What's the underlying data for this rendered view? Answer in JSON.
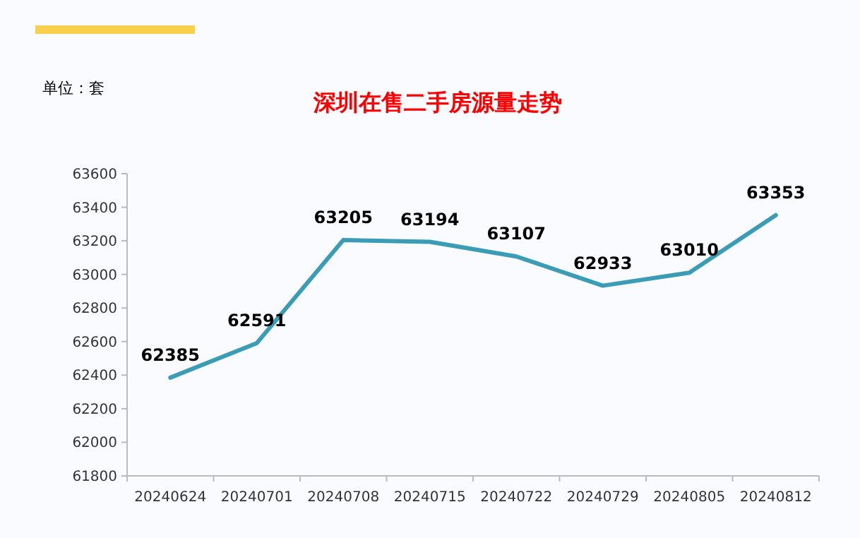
{
  "chart_data": {
    "type": "line",
    "title": "深圳在售二手房源量走势",
    "annotations": [
      "单位：套"
    ],
    "categories": [
      "20240624",
      "20240701",
      "20240708",
      "20240715",
      "20240722",
      "20240729",
      "20240805",
      "20240812"
    ],
    "values": [
      62385,
      62591,
      63205,
      63194,
      63107,
      62933,
      63010,
      63353
    ],
    "color": "#3a9db5",
    "ylim": [
      61800,
      63600
    ],
    "yticks": [
      61800,
      62000,
      62200,
      62400,
      62600,
      62800,
      63000,
      63200,
      63400,
      63600
    ],
    "data_labels": true,
    "grid": false
  }
}
